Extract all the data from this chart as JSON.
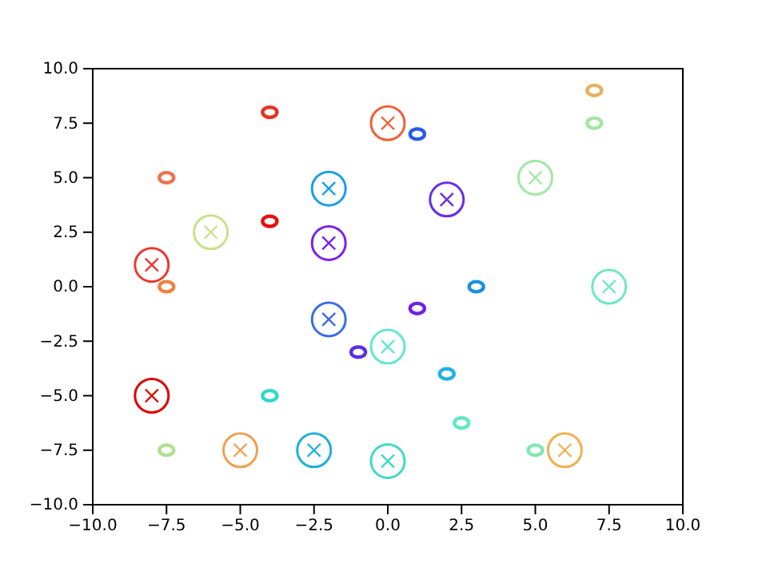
{
  "chart_data": {
    "type": "scatter",
    "xlim": [
      -10,
      10
    ],
    "ylim": [
      -10,
      10
    ],
    "xticks": [
      {
        "value": -10,
        "label": "−10.0"
      },
      {
        "value": -7.5,
        "label": "−7.5"
      },
      {
        "value": -5,
        "label": "−5.0"
      },
      {
        "value": -2.5,
        "label": "−2.5"
      },
      {
        "value": 0,
        "label": "0.0"
      },
      {
        "value": 2.5,
        "label": "2.5"
      },
      {
        "value": 5,
        "label": "5.0"
      },
      {
        "value": 7.5,
        "label": "7.5"
      },
      {
        "value": 10,
        "label": "10.0"
      }
    ],
    "yticks": [
      {
        "value": -10,
        "label": "−10.0"
      },
      {
        "value": -7.5,
        "label": "−7.5"
      },
      {
        "value": -5,
        "label": "−5.0"
      },
      {
        "value": -2.5,
        "label": "−2.5"
      },
      {
        "value": 0,
        "label": "0.0"
      },
      {
        "value": 2.5,
        "label": "2.5"
      },
      {
        "value": 5,
        "label": "5.0"
      },
      {
        "value": 7.5,
        "label": "7.5"
      },
      {
        "value": 10,
        "label": "10.0"
      }
    ],
    "grid": false,
    "series": [
      {
        "marker": "circle",
        "x": [
          0,
          -2,
          2,
          5,
          -6,
          -2,
          -8,
          7.5,
          -2,
          0,
          -8,
          -5,
          -2.5,
          0,
          6
        ],
        "values": [
          7.5,
          4.5,
          4,
          5,
          2.5,
          2,
          1,
          0,
          -1.5,
          -2.75,
          -5,
          -7.5,
          -7.5,
          -8,
          -7.5
        ],
        "colors": [
          "#f0603a",
          "#1a9fe8",
          "#6a2ce8",
          "#a0e8a0",
          "#c8e08c",
          "#7a22e8",
          "#e83a30",
          "#70e8c0",
          "#3a6ce8",
          "#60e8d0",
          "#e00000",
          "#f0a050",
          "#20b0d8",
          "#40d8c8",
          "#f0b050"
        ]
      },
      {
        "marker": "circle",
        "x": [
          -4,
          -7.5,
          -4,
          -7.5,
          1,
          7,
          7,
          3,
          1,
          -1,
          -4,
          2,
          2.5,
          5,
          -7.5
        ],
        "values": [
          8,
          5,
          3,
          0,
          7,
          9,
          7.5,
          0,
          -1,
          -3,
          -5,
          -4,
          -6.25,
          -7.5,
          -7.5
        ],
        "colors": [
          "#e83020",
          "#f07050",
          "#e81010",
          "#f08040",
          "#2a5ae8",
          "#e8b060",
          "#a0e8a0",
          "#1a90e0",
          "#7020e8",
          "#5a30e8",
          "#30d8c8",
          "#20b0e8",
          "#60e8c8",
          "#80e8b0",
          "#b0e090"
        ]
      }
    ]
  }
}
